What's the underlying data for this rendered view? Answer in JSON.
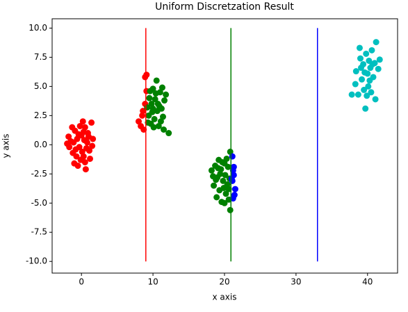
{
  "chart_data": {
    "type": "scatter",
    "title": "Uniform Discretzation Result",
    "x_label": "x axis",
    "y_label": "y axis",
    "xlim": [
      -4.1,
      44.2
    ],
    "ylim": [
      -11.0,
      10.8
    ],
    "xticks": [
      0,
      10,
      20,
      30,
      40
    ],
    "yticks": [
      {
        "value": -10,
        "label": "-10.0"
      },
      {
        "value": -7.5,
        "label": "-7.5"
      },
      {
        "value": -5,
        "label": "-5.0"
      },
      {
        "value": -2.5,
        "label": "-2.5"
      },
      {
        "value": 0,
        "label": "0.0"
      },
      {
        "value": 2.5,
        "label": "2.5"
      },
      {
        "value": 5,
        "label": "5.0"
      },
      {
        "value": 7.5,
        "label": "7.5"
      },
      {
        "value": 10,
        "label": "10.0"
      }
    ],
    "series": [
      {
        "color": "#ff0000",
        "x": [
          -1.8,
          -1.5,
          -1.2,
          -0.9,
          -0.6,
          -0.3,
          0,
          0.3,
          0.5,
          0.8,
          1.1,
          1.4,
          -1,
          -0.5,
          0.6,
          0.2,
          -0.2,
          0.9,
          1.6,
          -1.7,
          -0.8,
          0.1,
          0.4,
          -0.4,
          1.2,
          -1.3,
          0.7,
          -0.1,
          1.5,
          -2,
          0.3,
          -0.7,
          1,
          -1.1,
          0.5,
          8,
          8.3,
          8.6,
          8.7,
          8.9,
          8.9,
          9.1,
          8.5,
          9.1
        ],
        "y": [
          0.7,
          0.3,
          -0.7,
          1.2,
          0.5,
          -0.2,
          0.8,
          -1,
          1.5,
          0.2,
          -0.5,
          1.9,
          -1.6,
          -1.8,
          -2.1,
          2,
          1.6,
          1,
          0.5,
          -0.2,
          -0.4,
          -0.6,
          0.4,
          0.9,
          -1.2,
          1.5,
          -0.3,
          -1.3,
          -0.1,
          0.1,
          1.1,
          -1,
          0.7,
          0.2,
          -1.5,
          2,
          1.6,
          2.9,
          1.3,
          3.5,
          5.8,
          6,
          2.5,
          4.6
        ]
      },
      {
        "color": "#008000",
        "x": [
          9.2,
          9.4,
          9.5,
          9.7,
          9.8,
          10,
          10.2,
          10.3,
          10.5,
          10.6,
          10.8,
          11,
          11.2,
          11.4,
          11.6,
          11.8,
          12.2,
          11.5,
          10.1,
          9.9,
          10.7,
          10.4,
          11.1,
          9.6,
          10.9,
          11.3,
          10,
          9.3,
          18.2,
          18.5,
          18.7,
          18.9,
          19,
          19.2,
          19.3,
          19.5,
          19.6,
          19.8,
          20,
          20.1,
          20.2,
          20.4,
          20.5,
          20.6,
          20.8,
          20.8,
          20.7,
          19.4,
          19.9,
          20.3,
          18.8,
          19.7,
          20,
          18.4,
          19.1,
          20.6
        ],
        "y": [
          3.2,
          2.5,
          4,
          1.8,
          3.5,
          4.8,
          2.2,
          3.9,
          5.5,
          2.9,
          1.6,
          4.5,
          3.1,
          2.4,
          3.8,
          4.3,
          1,
          1.3,
          1.5,
          2.8,
          3.5,
          4.4,
          2,
          4.6,
          3.3,
          4.9,
          3.1,
          1.9,
          -2.2,
          -3.5,
          -1.8,
          -4.5,
          -2.8,
          -1.3,
          -3.9,
          -2.1,
          -4.9,
          -3.1,
          -1.6,
          -2.6,
          -4.2,
          -3.4,
          -1.9,
          -4.7,
          -0.6,
          -5.6,
          -2.9,
          -2.5,
          -3.7,
          -1.2,
          -3,
          -1.5,
          -5,
          -2.7,
          -2,
          -3.8
        ]
      },
      {
        "color": "#0000ff",
        "x": [
          21.1,
          21.2,
          21.3,
          21.1,
          21.5,
          21.4,
          21.2,
          21,
          21.3
        ],
        "y": [
          -1,
          -2.2,
          -2.6,
          -3.1,
          -3.8,
          -4.3,
          -4.6,
          -2.9,
          -1.9
        ]
      },
      {
        "color": "#00bfbf",
        "x": [
          37.8,
          38.3,
          38.4,
          38.7,
          38.9,
          39,
          39.2,
          39.4,
          39.5,
          39.7,
          39.8,
          40,
          40.1,
          40.2,
          40.4,
          40.5,
          40.6,
          40.8,
          41,
          41.1,
          41.2,
          41.5,
          41.7,
          39.6,
          40.3,
          39.1,
          40.7,
          39.9
        ],
        "y": [
          4.3,
          5.2,
          6.3,
          4.3,
          8.3,
          7.4,
          5.6,
          6.9,
          4.7,
          3.1,
          7.8,
          6.1,
          5,
          7.2,
          6.6,
          4.5,
          8.1,
          5.8,
          7,
          3.9,
          8.8,
          6.5,
          7.3,
          6.2,
          5.5,
          6.6,
          6.9,
          4.2
        ]
      }
    ],
    "vlines": [
      {
        "x": 9,
        "ymin": -10,
        "ymax": 10,
        "color": "#ff0000"
      },
      {
        "x": 20.9,
        "ymin": -10,
        "ymax": 10,
        "color": "#008000"
      },
      {
        "x": 33,
        "ymin": -10,
        "ymax": 10,
        "color": "#0000ff"
      }
    ]
  }
}
